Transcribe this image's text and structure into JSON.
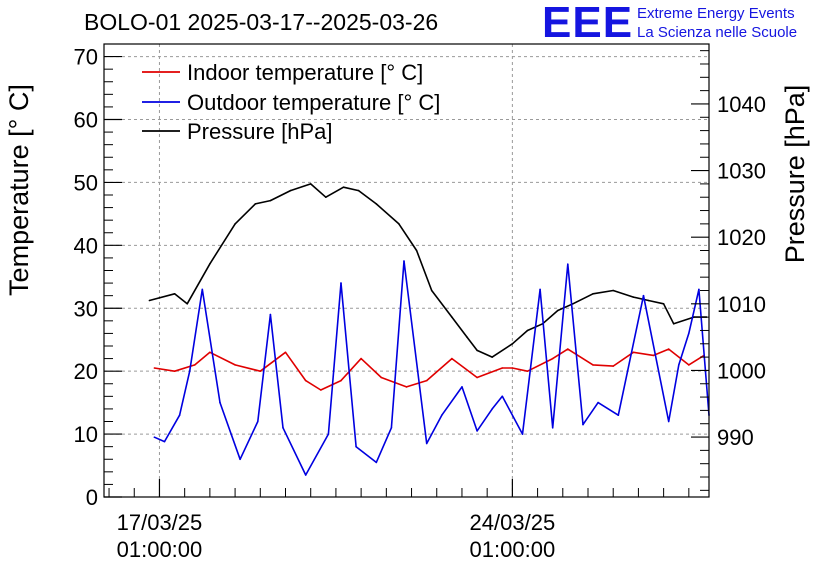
{
  "chart_data": {
    "type": "line",
    "title": "BOLO-01 2025-03-17--2025-03-26",
    "ylabel": "Temperature [° C]",
    "y2label": "Pressure [hPa]",
    "ylim": [
      0,
      72
    ],
    "y2lim": [
      981,
      1049
    ],
    "yticks": [
      "0",
      "10",
      "20",
      "30",
      "40",
      "50",
      "60",
      "70"
    ],
    "y2ticks": [
      "990",
      "1000",
      "1010",
      "1020",
      "1030",
      "1040"
    ],
    "xticks": [
      {
        "date": "17/03/25",
        "time": "01:00:00",
        "day": 0
      },
      {
        "date": "24/03/25",
        "time": "01:00:00",
        "day": 7
      }
    ],
    "xlim_days": [
      -1.1,
      10.9
    ],
    "grid": true,
    "legend_position": "top-left",
    "series": [
      {
        "name": "Indoor temperature [° C]",
        "color": "#e00000",
        "axis": "left",
        "x": [
          -0.1,
          0.3,
          0.7,
          1.0,
          1.5,
          2.0,
          2.5,
          2.9,
          3.2,
          3.6,
          4.0,
          4.4,
          4.9,
          5.3,
          5.8,
          6.3,
          6.8,
          7.0,
          7.3,
          7.8,
          8.1,
          8.6,
          9.0,
          9.4,
          9.8,
          10.1,
          10.5,
          10.8
        ],
        "y": [
          20.5,
          20.0,
          21.0,
          23.0,
          21.0,
          20.0,
          23.0,
          18.5,
          17.0,
          18.5,
          22.0,
          19.0,
          17.5,
          18.5,
          22.0,
          19.0,
          20.5,
          20.5,
          20.0,
          22.0,
          23.5,
          21.0,
          20.8,
          23.0,
          22.5,
          23.5,
          21.0,
          22.5
        ]
      },
      {
        "name": "Outdoor temperature [° C]",
        "color": "#0000e0",
        "axis": "left",
        "x": [
          -0.1,
          0.1,
          0.4,
          0.6,
          0.85,
          1.2,
          1.6,
          1.95,
          2.2,
          2.45,
          2.9,
          3.35,
          3.6,
          3.9,
          4.3,
          4.6,
          4.85,
          5.3,
          5.6,
          6.0,
          6.3,
          6.6,
          6.8,
          7.2,
          7.55,
          7.8,
          8.1,
          8.4,
          8.7,
          9.1,
          9.6,
          10.1,
          10.3,
          10.5,
          10.7,
          10.9
        ],
        "y": [
          9.5,
          8.8,
          13.0,
          20.0,
          33.0,
          15.0,
          6.0,
          12.0,
          29.0,
          11.0,
          3.5,
          10.0,
          34.0,
          8.0,
          5.5,
          11.0,
          37.5,
          8.5,
          13.0,
          17.5,
          10.5,
          14.0,
          16.0,
          10.0,
          33.0,
          11.0,
          37.0,
          11.5,
          15.0,
          13.0,
          32.0,
          12.0,
          21.0,
          26.0,
          33.0,
          13.0
        ]
      },
      {
        "name": "Pressure [hPa]",
        "color": "#000000",
        "axis": "right",
        "x": [
          -0.2,
          0.3,
          0.55,
          1.0,
          1.5,
          1.9,
          2.2,
          2.6,
          3.0,
          3.3,
          3.65,
          3.95,
          4.3,
          4.75,
          5.1,
          5.4,
          5.8,
          6.1,
          6.3,
          6.6,
          7.0,
          7.3,
          7.6,
          7.9,
          8.2,
          8.6,
          9.0,
          9.4,
          9.7,
          10.0,
          10.2,
          10.6,
          10.85
        ],
        "y": [
          1010.5,
          1011.5,
          1010.0,
          1016.0,
          1022.0,
          1025.0,
          1025.5,
          1027.0,
          1028.0,
          1026.0,
          1027.5,
          1027.0,
          1025.0,
          1022.0,
          1018.0,
          1012.0,
          1008.0,
          1005.0,
          1003.0,
          1002.0,
          1004.0,
          1006.0,
          1007.0,
          1009.0,
          1010.0,
          1011.5,
          1012.0,
          1011.0,
          1010.5,
          1010.0,
          1007.0,
          1008.0,
          1008.0
        ]
      }
    ]
  },
  "logo": {
    "mark": "EEE",
    "line1": "Extreme Energy Events",
    "line2": "La Scienza nelle Scuole"
  }
}
